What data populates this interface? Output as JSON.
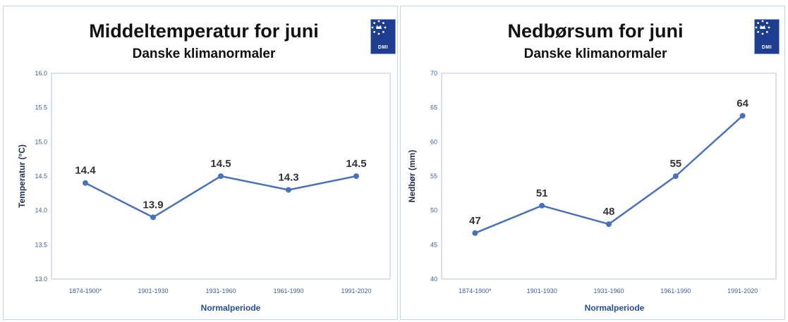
{
  "chart_data": [
    {
      "type": "line",
      "title": "Middeltemperatur for juni",
      "subtitle": "Danske klimanormaler",
      "xlabel": "Normalperiode",
      "ylabel": "Temperatur (°C)",
      "categories": [
        "1874-1900*",
        "1901-1930",
        "1931-1960",
        "1961-1990",
        "1991-2020"
      ],
      "series": [
        {
          "values": [
            14.4,
            13.9,
            14.5,
            14.3,
            14.5
          ]
        }
      ],
      "data_labels": [
        "14.4",
        "13.9",
        "14.5",
        "14.3",
        "14.5"
      ],
      "ylim": [
        13.0,
        16.0
      ],
      "ytick_labels": [
        "13.0",
        "13.5",
        "14.0",
        "14.5",
        "15.0",
        "15.5",
        "16.0"
      ],
      "grid": false,
      "line_color": "#4a72b8",
      "logo_text": "DMI"
    },
    {
      "type": "line",
      "title": "Nedbørsum for juni",
      "subtitle": "Danske klimanormaler",
      "xlabel": "Normalperiode",
      "ylabel": "Nedbør (mm)",
      "categories": [
        "1874-1900*",
        "1901-1930",
        "1931-1960",
        "1961-1990",
        "1991-2020"
      ],
      "series": [
        {
          "values": [
            46.7,
            50.7,
            48.0,
            55.0,
            63.8
          ]
        }
      ],
      "data_labels": [
        "47",
        "51",
        "48",
        "55",
        "64"
      ],
      "ylim": [
        40,
        70
      ],
      "ytick_labels": [
        "40",
        "45",
        "50",
        "55",
        "60",
        "65",
        "70"
      ],
      "grid": false,
      "line_color": "#4a72b8",
      "logo_text": "DMI"
    }
  ]
}
